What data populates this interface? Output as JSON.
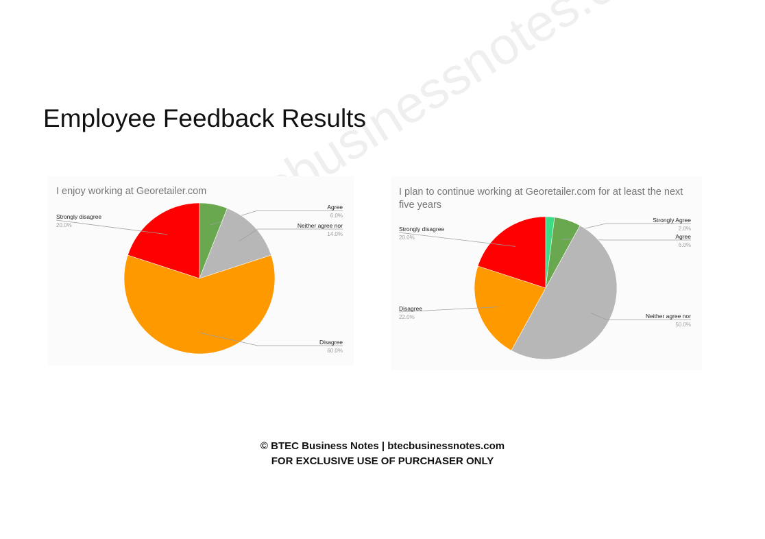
{
  "watermark": "btecbusinessnotes.com",
  "page_title": "Employee Feedback Results",
  "footer": {
    "line1": "© BTEC Business Notes | btecbusinessnotes.com",
    "line2": "FOR EXCLUSIVE USE OF PURCHASER ONLY"
  },
  "colors": {
    "strongly_agree": "#3ddc84",
    "agree": "#6aa84f",
    "neither": "#b7b7b7",
    "disagree": "#ff9900",
    "strongly_disagree": "#ff0000"
  },
  "chart_data": [
    {
      "type": "pie",
      "title": "I enjoy working at Georetailer.com",
      "slices": [
        {
          "label": "Agree",
          "value": 6.0,
          "display": "6.0%",
          "color": "#6aa84f"
        },
        {
          "label": "Neither agree nor",
          "value": 14.0,
          "display": "14.0%",
          "color": "#b7b7b7"
        },
        {
          "label": "Disagree",
          "value": 60.0,
          "display": "60.0%",
          "color": "#ff9900"
        },
        {
          "label": "Strongly disagree",
          "value": 20.0,
          "display": "20.0%",
          "color": "#ff0000"
        }
      ]
    },
    {
      "type": "pie",
      "title": "I plan to continue working at Georetailer.com for at least the next five years",
      "slices": [
        {
          "label": "Strongly Agree",
          "value": 2.0,
          "display": "2.0%",
          "color": "#3ddc84"
        },
        {
          "label": "Agree",
          "value": 6.0,
          "display": "6.0%",
          "color": "#6aa84f"
        },
        {
          "label": "Neither agree nor",
          "value": 50.0,
          "display": "50.0%",
          "color": "#b7b7b7"
        },
        {
          "label": "Disagree",
          "value": 22.0,
          "display": "22.0%",
          "color": "#ff9900"
        },
        {
          "label": "Strongly disagree",
          "value": 20.0,
          "display": "20.0%",
          "color": "#ff0000"
        }
      ]
    }
  ]
}
